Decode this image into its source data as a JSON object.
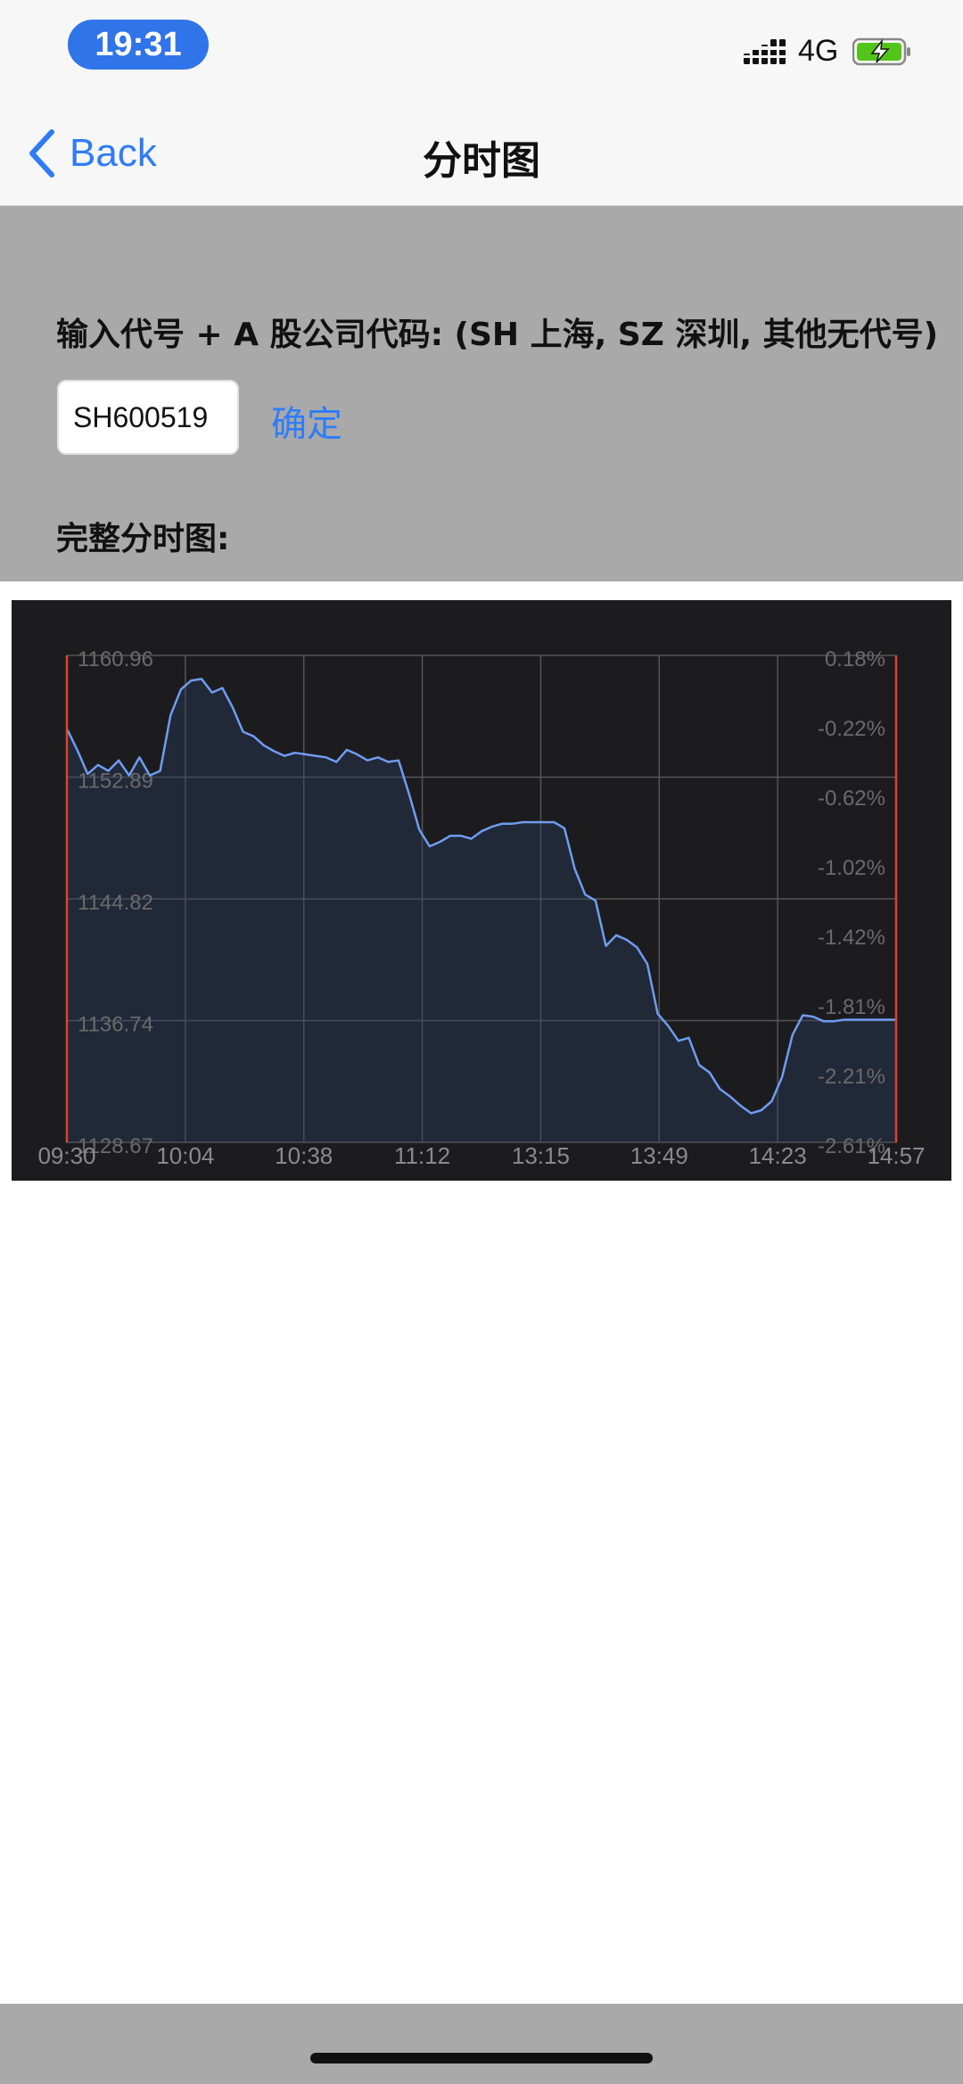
{
  "status_bar": {
    "time": "19:31",
    "network": "4G",
    "signal_icon": "signal-bars-icon",
    "battery_icon": "battery-charging-icon"
  },
  "nav": {
    "back_label": "Back",
    "title": "分时图"
  },
  "form": {
    "prompt": "输入代号 + A 股公司代码: (SH 上海, SZ 深圳, 其他无代号)",
    "input_value": "SH600519",
    "confirm_label": "确定",
    "chart_heading": "完整分时图:"
  },
  "chart_data": {
    "type": "area",
    "title": "",
    "x_labels": [
      "09:30",
      "10:04",
      "10:38",
      "11:12",
      "13:15",
      "13:49",
      "14:23",
      "14:57"
    ],
    "left_ticks": [
      "1160.96",
      "1152.89",
      "1144.82",
      "1136.74",
      "1128.67"
    ],
    "right_ticks": [
      "0.18%",
      "-0.22%",
      "-0.62%",
      "-1.02%",
      "-1.42%",
      "-1.81%",
      "-2.21%",
      "-2.61%"
    ],
    "ylim": [
      1128.67,
      1160.96
    ],
    "grid": true,
    "line_color": "#6f9cf0",
    "marker_color": "#e0412e",
    "series": [
      {
        "x": [
          0,
          3,
          6,
          9,
          12,
          15,
          18,
          21,
          24,
          27,
          30,
          33,
          36,
          39,
          42,
          45,
          48,
          51,
          54,
          57,
          60,
          63,
          66,
          69,
          72,
          75,
          78,
          81,
          84,
          87,
          90,
          93,
          96,
          99,
          102,
          105,
          108,
          111,
          114,
          117,
          120,
          123,
          126,
          129,
          132,
          135,
          138,
          141,
          144,
          147,
          150,
          153,
          156,
          159,
          162,
          165,
          168,
          171,
          174,
          177,
          180,
          183,
          186,
          189,
          192,
          195,
          198,
          201,
          204,
          207,
          210,
          213,
          216,
          219,
          222,
          225,
          228,
          231,
          234,
          237,
          240
        ],
        "values": [
          1156.1,
          1154.7,
          1153.1,
          1153.7,
          1153.3,
          1154.0,
          1153.0,
          1154.2,
          1153.0,
          1153.3,
          1157.0,
          1158.7,
          1159.3,
          1159.4,
          1158.5,
          1158.8,
          1157.5,
          1155.9,
          1155.6,
          1155.0,
          1154.6,
          1154.3,
          1154.5,
          1154.4,
          1154.3,
          1154.2,
          1153.9,
          1154.7,
          1154.4,
          1154.0,
          1154.2,
          1153.9,
          1154.0,
          1151.8,
          1149.4,
          1148.3,
          1148.6,
          1149.0,
          1149.0,
          1148.8,
          1149.3,
          1149.6,
          1149.8,
          1149.8,
          1149.9,
          1149.9,
          1149.9,
          1149.9,
          1149.5,
          1146.8,
          1145.1,
          1144.7,
          1141.7,
          1142.4,
          1142.1,
          1141.6,
          1140.5,
          1137.2,
          1136.4,
          1135.4,
          1135.6,
          1133.8,
          1133.3,
          1132.2,
          1131.7,
          1131.1,
          1130.6,
          1130.8,
          1131.4,
          1133.0,
          1135.8,
          1137.1,
          1137.0,
          1136.7,
          1136.7,
          1136.8,
          1136.8,
          1136.8,
          1136.8,
          1136.8,
          1136.8
        ]
      }
    ]
  }
}
